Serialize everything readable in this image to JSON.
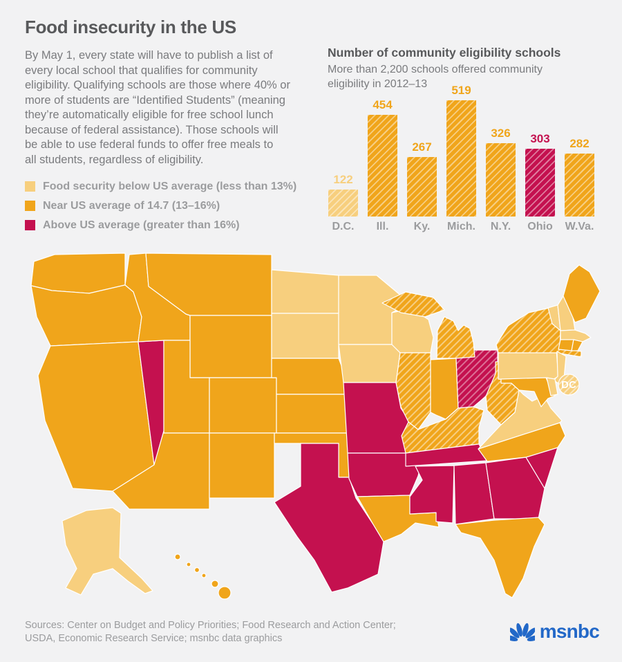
{
  "colors": {
    "background": "#F2F2F3",
    "text_dark": "#58595B",
    "text_body": "#7A7B7E",
    "text_muted": "#9B9C9E",
    "brand_blue": "#2268C8",
    "state_border": "#FFFFFF",
    "below": "#F7CF7E",
    "near": "#F0A51B",
    "above": "#C4114F"
  },
  "header": {
    "title": "Food insecurity in the US",
    "body": "By May 1, every state will have to publish a list of\nevery local school that qualifies for community\neligibility. Qualifying schools are those where 40% or\nmore of students are “Identified Students” (meaning\nthey’re automatically eligible for free school lunch\nbecause of federal assistance). Those schools will\nbe able to use federal funds to offer free meals to\nall students, regardless of eligibility."
  },
  "legend": {
    "items": [
      {
        "label": "Food security below US average (less than 13%)",
        "category": "below"
      },
      {
        "label": "Near US average of 14.7 (13–16%)",
        "category": "near"
      },
      {
        "label": "Above US average (greater than 16%)",
        "category": "above"
      }
    ]
  },
  "chart_data": {
    "type": "bar",
    "title": "Number of community eligibility schools",
    "subtitle": "More than 2,200 schools offered community\neligibility in 2012–13",
    "categories": [
      "D.C.",
      "Ill.",
      "Ky.",
      "Mich.",
      "N.Y.",
      "Ohio",
      "W.Va."
    ],
    "values": [
      122,
      454,
      267,
      519,
      326,
      303,
      282
    ],
    "bar_levels": [
      "below",
      "near",
      "near",
      "near",
      "near",
      "above",
      "near"
    ],
    "hatched": true,
    "value_labels": true,
    "ylim": [
      0,
      519
    ],
    "xlabel": "",
    "ylabel": ""
  },
  "map": {
    "dc_label": "DC",
    "states_below": [
      "AK",
      "ND",
      "SD",
      "MN",
      "IA",
      "WI",
      "PA",
      "NJ",
      "DE",
      "VA",
      "VT",
      "NH",
      "MA",
      "DC"
    ],
    "states_near": [
      "WA",
      "OR",
      "CA",
      "ID",
      "MT",
      "WY",
      "UT",
      "CO",
      "AZ",
      "NM",
      "NE",
      "KS",
      "OK",
      "LA",
      "HI",
      "IN",
      "ME",
      "CT",
      "RI",
      "MD",
      "NC",
      "FL",
      "IL",
      "KY",
      "MI",
      "NY",
      "WV"
    ],
    "states_above": [
      "NV",
      "TX",
      "MO",
      "AR",
      "MS",
      "AL",
      "GA",
      "SC",
      "TN",
      "OH"
    ],
    "states_hatched": [
      "IL",
      "KY",
      "MI",
      "NY",
      "WV",
      "OH",
      "DC"
    ]
  },
  "footer": {
    "sources": "Sources: Center on Budget and Policy Priorities; Food Research and Action Center;\nUSDA, Economic Research Service; msnbc data graphics",
    "brand": "msnbc"
  }
}
